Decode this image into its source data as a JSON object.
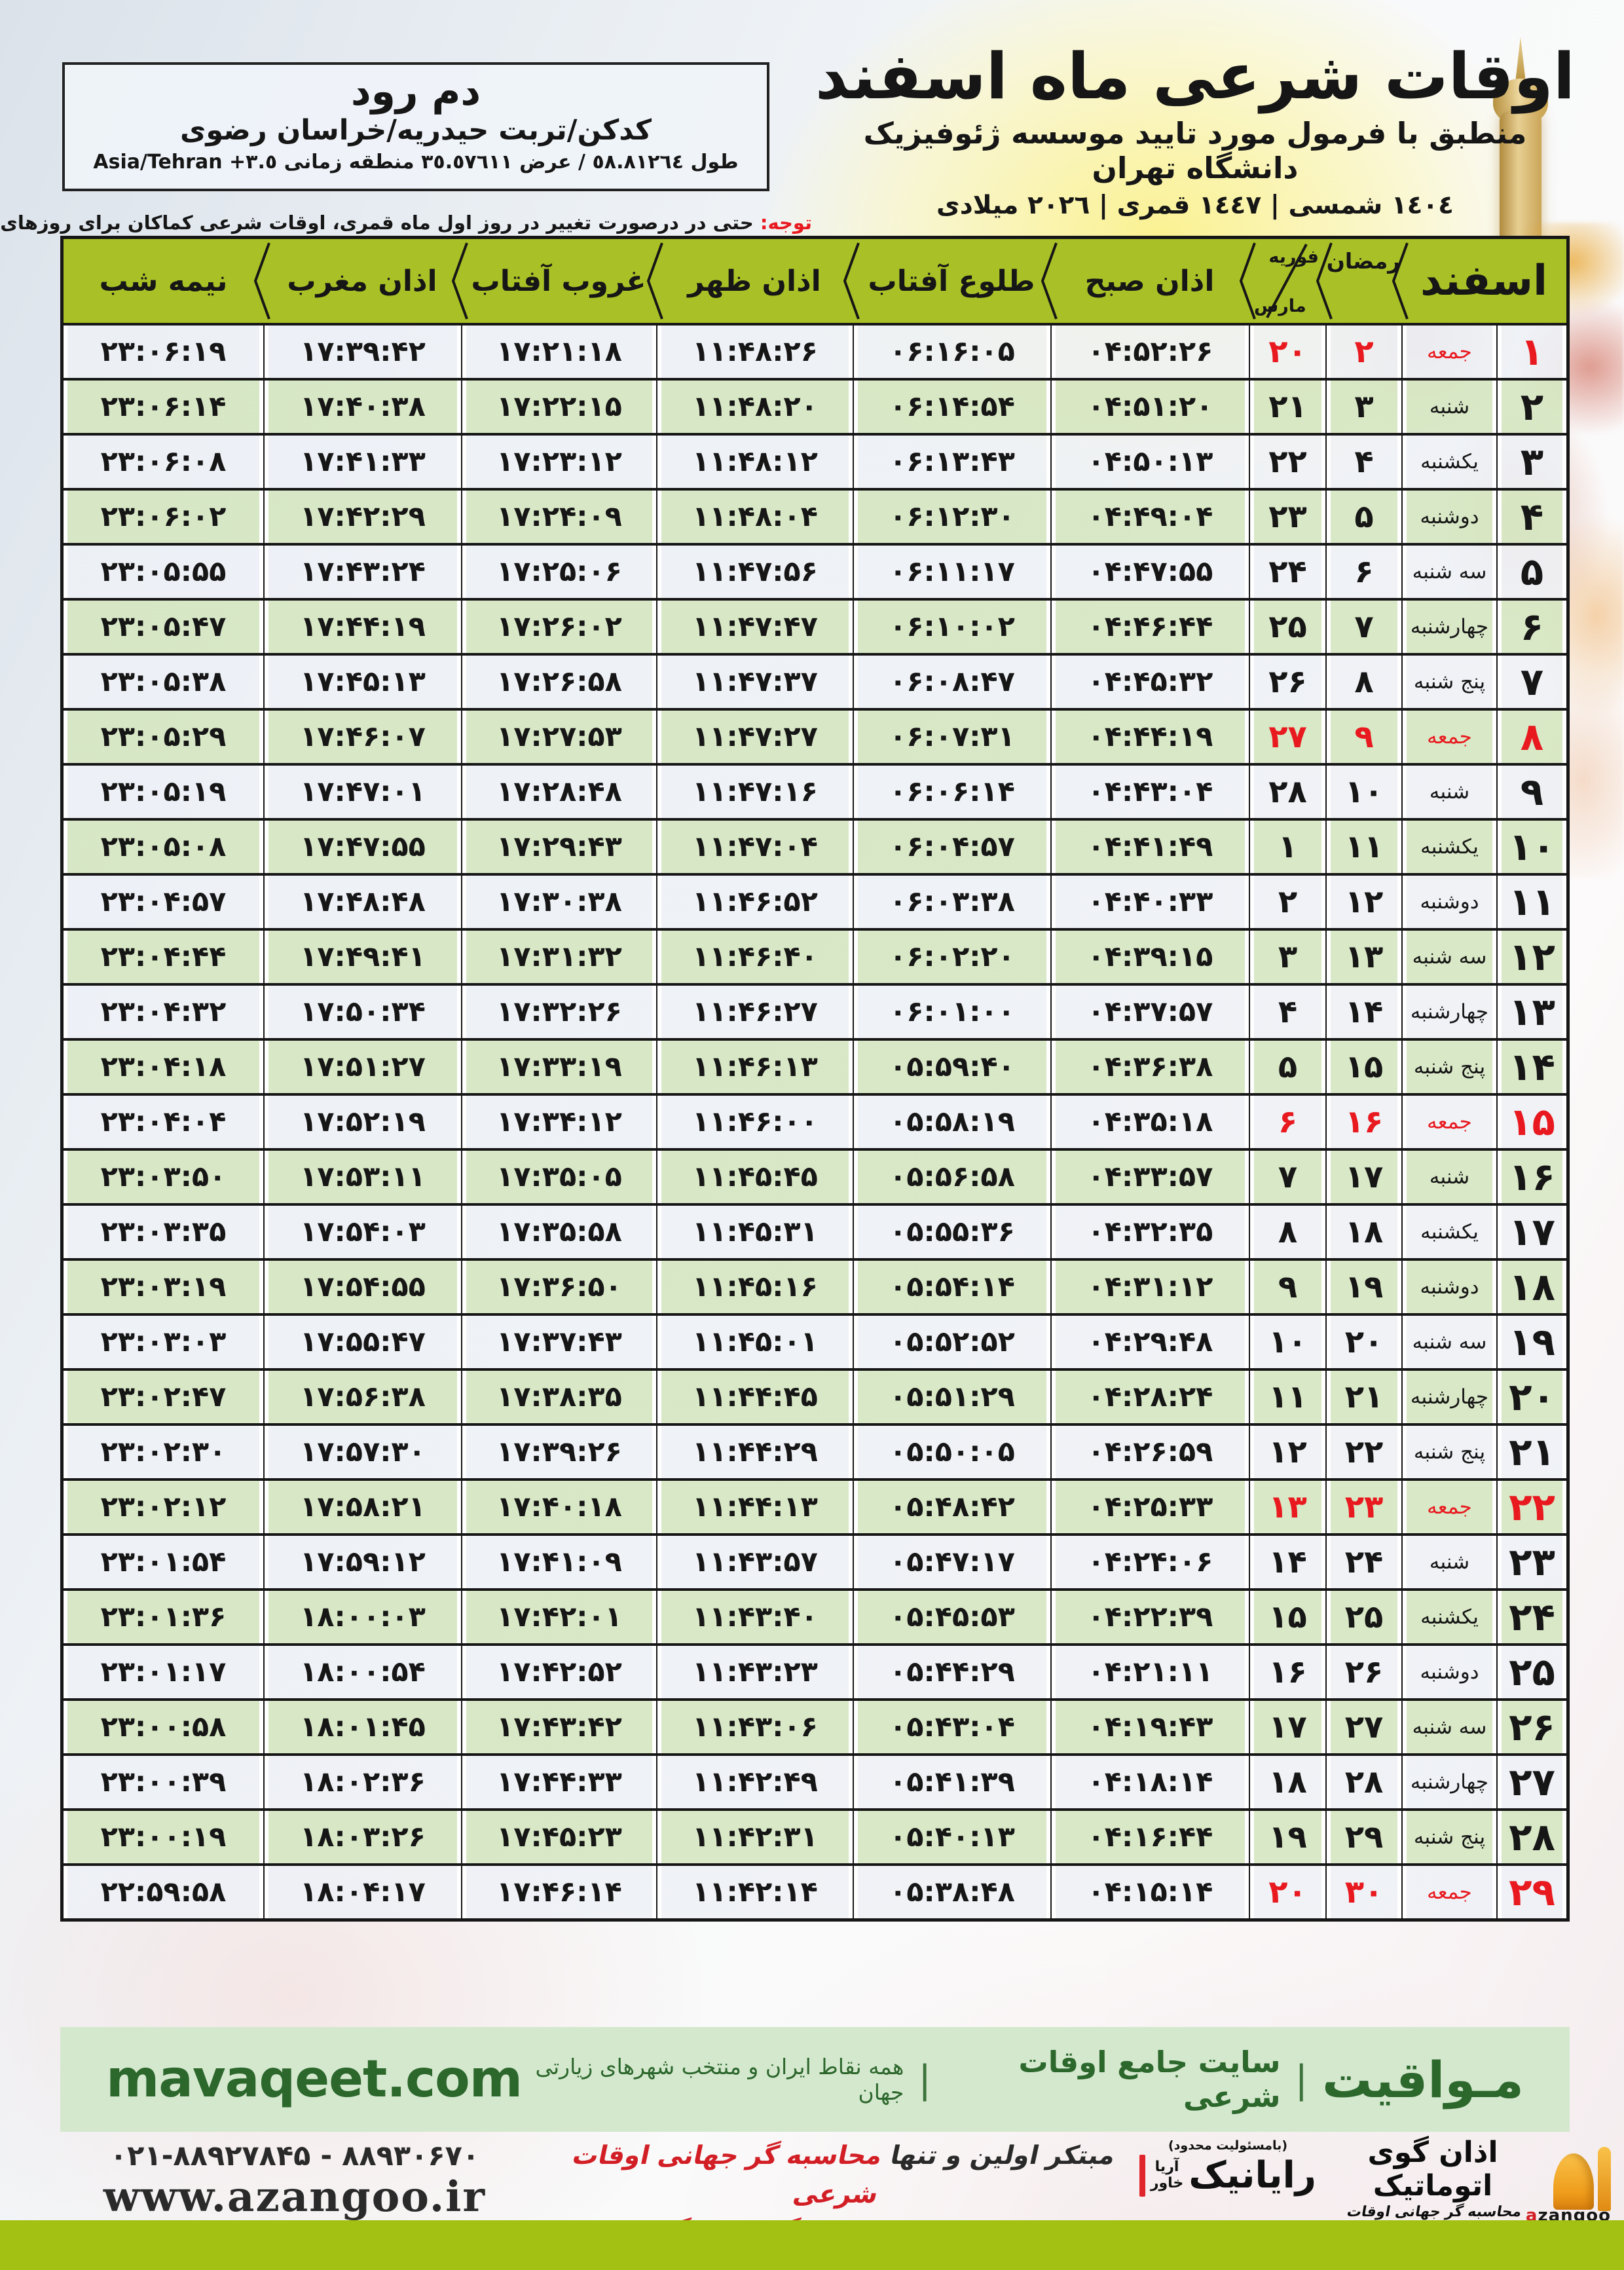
{
  "header": {
    "title": "اوقات شرعی ماه اسفند",
    "subtitle": "منطبق با فرمول مورد تایید موسسه ژئوفیزیک دانشگاه تهران",
    "years": "١٤٠٤ شمسی | ١٤٤٧ قمری | ٢٠٢٦ میلادی"
  },
  "location": {
    "name": "دم رود",
    "region": "کدکن/تربت حیدریه/خراسان رضوی",
    "coords_fa": "طول ٥٨.٨١٢٦٤ / عرض ٣٥.٥٧٦١١ منطقه زمانی",
    "coords_tz": "Asia/Tehran +٣.٥"
  },
  "notice": {
    "label": "توجه:",
    "text": " حتی در درصورت تغییر در روز اول ماه قمری، اوقات شرعی کماکان برای روزهای شمسی و میلادی معتبر است."
  },
  "table": {
    "headers": {
      "esfand": "اسفند",
      "ramadan": "رمضان",
      "feb": "فوریه",
      "mar": "مارس",
      "azan_sobh": "اذان صبح",
      "sunrise": "طلوع آفتاب",
      "azan_zohr": "اذان ظهر",
      "sunset": "غروب آفتاب",
      "azan_maghreb": "اذان مغرب",
      "midnight": "نیمه شب"
    },
    "rows": [
      {
        "d": 1,
        "w": "جمعه",
        "r": 2,
        "g": 20,
        "sobh": "04:52:26",
        "tolu": "06:16:05",
        "zohr": "11:48:26",
        "ghorub": "17:21:18",
        "maghreb": "17:39:42",
        "nime": "23:06:19",
        "f": true
      },
      {
        "d": 2,
        "w": "شنبه",
        "r": 3,
        "g": 21,
        "sobh": "04:51:20",
        "tolu": "06:14:54",
        "zohr": "11:48:20",
        "ghorub": "17:22:15",
        "maghreb": "17:40:38",
        "nime": "23:06:14",
        "f": false
      },
      {
        "d": 3,
        "w": "یکشنبه",
        "r": 4,
        "g": 22,
        "sobh": "04:50:13",
        "tolu": "06:13:43",
        "zohr": "11:48:12",
        "ghorub": "17:23:12",
        "maghreb": "17:41:33",
        "nime": "23:06:08",
        "f": false
      },
      {
        "d": 4,
        "w": "دوشنبه",
        "r": 5,
        "g": 23,
        "sobh": "04:49:04",
        "tolu": "06:12:30",
        "zohr": "11:48:04",
        "ghorub": "17:24:09",
        "maghreb": "17:42:29",
        "nime": "23:06:02",
        "f": false
      },
      {
        "d": 5,
        "w": "سه شنبه",
        "r": 6,
        "g": 24,
        "sobh": "04:47:55",
        "tolu": "06:11:17",
        "zohr": "11:47:56",
        "ghorub": "17:25:06",
        "maghreb": "17:43:24",
        "nime": "23:05:55",
        "f": false
      },
      {
        "d": 6,
        "w": "چهارشنبه",
        "r": 7,
        "g": 25,
        "sobh": "04:46:44",
        "tolu": "06:10:02",
        "zohr": "11:47:47",
        "ghorub": "17:26:02",
        "maghreb": "17:44:19",
        "nime": "23:05:47",
        "f": false
      },
      {
        "d": 7,
        "w": "پنج شنبه",
        "r": 8,
        "g": 26,
        "sobh": "04:45:32",
        "tolu": "06:08:47",
        "zohr": "11:47:37",
        "ghorub": "17:26:58",
        "maghreb": "17:45:13",
        "nime": "23:05:38",
        "f": false
      },
      {
        "d": 8,
        "w": "جمعه",
        "r": 9,
        "g": 27,
        "sobh": "04:44:19",
        "tolu": "06:07:31",
        "zohr": "11:47:27",
        "ghorub": "17:27:53",
        "maghreb": "17:46:07",
        "nime": "23:05:29",
        "f": true
      },
      {
        "d": 9,
        "w": "شنبه",
        "r": 10,
        "g": 28,
        "sobh": "04:43:04",
        "tolu": "06:06:14",
        "zohr": "11:47:16",
        "ghorub": "17:28:48",
        "maghreb": "17:47:01",
        "nime": "23:05:19",
        "f": false
      },
      {
        "d": 10,
        "w": "یکشنبه",
        "r": 11,
        "g": 1,
        "sobh": "04:41:49",
        "tolu": "06:04:57",
        "zohr": "11:47:04",
        "ghorub": "17:29:43",
        "maghreb": "17:47:55",
        "nime": "23:05:08",
        "f": false
      },
      {
        "d": 11,
        "w": "دوشنبه",
        "r": 12,
        "g": 2,
        "sobh": "04:40:33",
        "tolu": "06:03:38",
        "zohr": "11:46:52",
        "ghorub": "17:30:38",
        "maghreb": "17:48:48",
        "nime": "23:04:57",
        "f": false
      },
      {
        "d": 12,
        "w": "سه شنبه",
        "r": 13,
        "g": 3,
        "sobh": "04:39:15",
        "tolu": "06:02:20",
        "zohr": "11:46:40",
        "ghorub": "17:31:32",
        "maghreb": "17:49:41",
        "nime": "23:04:44",
        "f": false
      },
      {
        "d": 13,
        "w": "چهارشنبه",
        "r": 14,
        "g": 4,
        "sobh": "04:37:57",
        "tolu": "06:01:00",
        "zohr": "11:46:27",
        "ghorub": "17:32:26",
        "maghreb": "17:50:34",
        "nime": "23:04:32",
        "f": false
      },
      {
        "d": 14,
        "w": "پنج شنبه",
        "r": 15,
        "g": 5,
        "sobh": "04:36:38",
        "tolu": "05:59:40",
        "zohr": "11:46:13",
        "ghorub": "17:33:19",
        "maghreb": "17:51:27",
        "nime": "23:04:18",
        "f": false
      },
      {
        "d": 15,
        "w": "جمعه",
        "r": 16,
        "g": 6,
        "sobh": "04:35:18",
        "tolu": "05:58:19",
        "zohr": "11:46:00",
        "ghorub": "17:34:12",
        "maghreb": "17:52:19",
        "nime": "23:04:04",
        "f": true
      },
      {
        "d": 16,
        "w": "شنبه",
        "r": 17,
        "g": 7,
        "sobh": "04:33:57",
        "tolu": "05:56:58",
        "zohr": "11:45:45",
        "ghorub": "17:35:05",
        "maghreb": "17:53:11",
        "nime": "23:03:50",
        "f": false
      },
      {
        "d": 17,
        "w": "یکشنبه",
        "r": 18,
        "g": 8,
        "sobh": "04:32:35",
        "tolu": "05:55:36",
        "zohr": "11:45:31",
        "ghorub": "17:35:58",
        "maghreb": "17:54:03",
        "nime": "23:03:35",
        "f": false
      },
      {
        "d": 18,
        "w": "دوشنبه",
        "r": 19,
        "g": 9,
        "sobh": "04:31:12",
        "tolu": "05:54:14",
        "zohr": "11:45:16",
        "ghorub": "17:36:50",
        "maghreb": "17:54:55",
        "nime": "23:03:19",
        "f": false
      },
      {
        "d": 19,
        "w": "سه شنبه",
        "r": 20,
        "g": 10,
        "sobh": "04:29:48",
        "tolu": "05:52:52",
        "zohr": "11:45:01",
        "ghorub": "17:37:43",
        "maghreb": "17:55:47",
        "nime": "23:03:03",
        "f": false
      },
      {
        "d": 20,
        "w": "چهارشنبه",
        "r": 21,
        "g": 11,
        "sobh": "04:28:24",
        "tolu": "05:51:29",
        "zohr": "11:44:45",
        "ghorub": "17:38:35",
        "maghreb": "17:56:38",
        "nime": "23:02:47",
        "f": false
      },
      {
        "d": 21,
        "w": "پنج شنبه",
        "r": 22,
        "g": 12,
        "sobh": "04:26:59",
        "tolu": "05:50:05",
        "zohr": "11:44:29",
        "ghorub": "17:39:26",
        "maghreb": "17:57:30",
        "nime": "23:02:30",
        "f": false
      },
      {
        "d": 22,
        "w": "جمعه",
        "r": 23,
        "g": 13,
        "sobh": "04:25:33",
        "tolu": "05:48:42",
        "zohr": "11:44:13",
        "ghorub": "17:40:18",
        "maghreb": "17:58:21",
        "nime": "23:02:12",
        "f": true
      },
      {
        "d": 23,
        "w": "شنبه",
        "r": 24,
        "g": 14,
        "sobh": "04:24:06",
        "tolu": "05:47:17",
        "zohr": "11:43:57",
        "ghorub": "17:41:09",
        "maghreb": "17:59:12",
        "nime": "23:01:54",
        "f": false
      },
      {
        "d": 24,
        "w": "یکشنبه",
        "r": 25,
        "g": 15,
        "sobh": "04:22:39",
        "tolu": "05:45:53",
        "zohr": "11:43:40",
        "ghorub": "17:42:01",
        "maghreb": "18:00:03",
        "nime": "23:01:36",
        "f": false
      },
      {
        "d": 25,
        "w": "دوشنبه",
        "r": 26,
        "g": 16,
        "sobh": "04:21:11",
        "tolu": "05:44:29",
        "zohr": "11:43:23",
        "ghorub": "17:42:52",
        "maghreb": "18:00:54",
        "nime": "23:01:17",
        "f": false
      },
      {
        "d": 26,
        "w": "سه شنبه",
        "r": 27,
        "g": 17,
        "sobh": "04:19:43",
        "tolu": "05:43:04",
        "zohr": "11:43:06",
        "ghorub": "17:43:42",
        "maghreb": "18:01:45",
        "nime": "23:00:58",
        "f": false
      },
      {
        "d": 27,
        "w": "چهارشنبه",
        "r": 28,
        "g": 18,
        "sobh": "04:18:14",
        "tolu": "05:41:39",
        "zohr": "11:42:49",
        "ghorub": "17:44:33",
        "maghreb": "18:02:36",
        "nime": "23:00:39",
        "f": false
      },
      {
        "d": 28,
        "w": "پنج شنبه",
        "r": 29,
        "g": 19,
        "sobh": "04:16:44",
        "tolu": "05:40:13",
        "zohr": "11:42:31",
        "ghorub": "17:45:23",
        "maghreb": "18:03:26",
        "nime": "23:00:19",
        "f": false
      },
      {
        "d": 29,
        "w": "جمعه",
        "r": 30,
        "g": 20,
        "sobh": "04:15:14",
        "tolu": "05:38:48",
        "zohr": "11:42:14",
        "ghorub": "17:46:14",
        "maghreb": "18:04:17",
        "nime": "22:59:58",
        "f": true
      }
    ]
  },
  "mavaqeet": {
    "logo": "مـواقیت",
    "site_label": "سایت جامع اوقات شرعی",
    "tagline": "همه نقاط ایران و منتخب شهرهای زیارتی جهان",
    "url": "mavaqeet.com"
  },
  "producer": {
    "line1_black": "مبتکر اولین و تنها ",
    "line1_red": "محاسبه گر جهانی اوقات شرعی",
    "line2_black": "و تولید کننده انواع ",
    "line2_red": "دستگاه اذان گوی تمام خودکار ماهواره ای"
  },
  "rayanik": {
    "small": "(بامسئولیت محدود)",
    "name": "رایانیک",
    "side1": "آریا",
    "side2": "خاور"
  },
  "azangoo": {
    "title": "اذان گوی اتوماتیک",
    "subtitle": "محاسبه گر جهانی اوقات شرعی",
    "brand_first": "a",
    "brand_rest": "zangoo",
    "phone": "۰۲۱-۸۸۹۲۷۸۴۵ - ۸۸۹۳۰۶۷۰",
    "url": "www.azangoo.ir"
  },
  "colors": {
    "accent_red": "#e8191f",
    "header_green": "#a9c126",
    "row_green": "#d6e7c2",
    "row_light": "#eef1f6",
    "footer_green_bg": "#d4e8ce",
    "footer_green_text": "#2c672c",
    "lime_bar": "#a3c112",
    "gold": "#d9a93f"
  }
}
